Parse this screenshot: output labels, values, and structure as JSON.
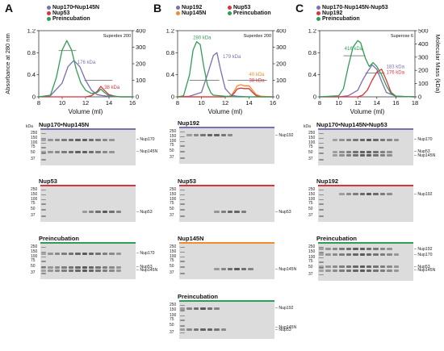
{
  "panels": [
    {
      "letter": "A",
      "legend": [
        {
          "label": "Nup170•Nup145N",
          "color": "#7b6fb0"
        },
        {
          "label": "Nup53",
          "color": "#d9333f"
        },
        {
          "label": "Preincubation",
          "color": "#2f9e55"
        }
      ],
      "column": "Superdex 200",
      "kda_labels": [
        "176 kDa",
        "38 kDa"
      ],
      "gels": [
        {
          "title": "Nup170•Nup145N",
          "line_color": "#7b6fb0",
          "mw": [
            "250",
            "150",
            "100",
            "75",
            "50",
            "37"
          ],
          "lanes": [
            "Nup170",
            "Nup145N"
          ]
        },
        {
          "title": "Nup53",
          "line_color": "#d9333f",
          "mw": [
            "250",
            "150",
            "100",
            "75",
            "50",
            "37"
          ],
          "lanes": [
            "Nup53"
          ]
        },
        {
          "title": "Preincubation",
          "line_color": "#2f9e55",
          "mw": [
            "250",
            "150",
            "100",
            "75",
            "50",
            "37"
          ],
          "lanes": [
            "Nup170",
            "Nup53",
            "Nup145N"
          ]
        }
      ]
    },
    {
      "letter": "B",
      "legend": [
        {
          "label": "Nup192",
          "color": "#7b6fb0"
        },
        {
          "label": "Nup145N",
          "color": "#f28c28"
        },
        {
          "label": "Nup53",
          "color": "#d9333f"
        },
        {
          "label": "Preincubation",
          "color": "#2f9e55"
        }
      ],
      "column": "Superdex 200",
      "kda_labels": [
        "280 kDa",
        "179 kDa",
        "40 kDa",
        "38 kDa"
      ],
      "gels": [
        {
          "title": "Nup192",
          "line_color": "#7b6fb0",
          "mw": [
            "250",
            "150",
            "100",
            "75",
            "50",
            "37"
          ],
          "lanes": [
            "Nup192"
          ]
        },
        {
          "title": "Nup53",
          "line_color": "#d9333f",
          "mw": [
            "250",
            "150",
            "100",
            "75",
            "50",
            "37"
          ],
          "lanes": [
            "Nup53"
          ]
        },
        {
          "title": "Nup145N",
          "line_color": "#f28c28",
          "mw": [
            "250",
            "150",
            "100",
            "75",
            "50",
            "37"
          ],
          "lanes": [
            "Nup145N"
          ]
        },
        {
          "title": "Preincubation",
          "line_color": "#2f9e55",
          "mw": [
            "250",
            "150",
            "100",
            "75",
            "50",
            "37"
          ],
          "lanes": [
            "Nup192",
            "Nup53",
            "Nup145N"
          ]
        }
      ]
    },
    {
      "letter": "C",
      "legend": [
        {
          "label": "Nup170-Nup145N-Nup53",
          "color": "#7b6fb0"
        },
        {
          "label": "Nup192",
          "color": "#d9333f"
        },
        {
          "label": "Preincubation",
          "color": "#2f9e55"
        }
      ],
      "column": "Superose 6",
      "kda_labels": [
        "416 kDa",
        "183 kDa",
        "176 kDa"
      ],
      "gels": [
        {
          "title": "Nup170•Nup145N•Nup53",
          "line_color": "#7b6fb0",
          "mw": [
            "250",
            "150",
            "100",
            "75",
            "50",
            "37"
          ],
          "lanes": [
            "Nup170",
            "Nup53",
            "Nup145N"
          ]
        },
        {
          "title": "Nup192",
          "line_color": "#d9333f",
          "mw": [
            "250",
            "150",
            "100",
            "75",
            "50",
            "37"
          ],
          "lanes": [
            "Nup192"
          ]
        },
        {
          "title": "Preincubation",
          "line_color": "#2f9e55",
          "mw": [
            "250",
            "150",
            "100",
            "75",
            "50",
            "37"
          ],
          "lanes": [
            "Nup192",
            "Nup170",
            "Nup53",
            "Nup145N"
          ]
        }
      ]
    }
  ],
  "axes": {
    "ylabel_left": "Absorbance at 280 nm",
    "ylabel_right": "Molecular Mass (kDa)",
    "xlabel": "Volume (ml)",
    "kda_unit": "kDa"
  },
  "chart_data": [
    {
      "type": "line",
      "xlabel": "Volume (ml)",
      "ylabel": "Absorbance at 280 nm",
      "y2label": "Molecular Mass (kDa)",
      "xlim": [
        8,
        16
      ],
      "xticks": [
        "8",
        "10",
        "12",
        "14",
        "16"
      ],
      "ylim": [
        0,
        1.2
      ],
      "yticks": [
        "0",
        "0.4",
        "0.8",
        "1.2"
      ],
      "y2lim": [
        0,
        400
      ],
      "y2ticks": [
        "0",
        "100",
        "200",
        "300",
        "400"
      ],
      "series": [
        {
          "name": "Nup170•Nup145N",
          "color": "#7b6fb0",
          "x": [
            8,
            9,
            10,
            10.5,
            11,
            11.5,
            12,
            12.5,
            13,
            13.5,
            14,
            15,
            16
          ],
          "y": [
            0,
            0.02,
            0.25,
            0.55,
            0.66,
            0.55,
            0.3,
            0.12,
            0.04,
            0.02,
            0.01,
            0,
            0
          ]
        },
        {
          "name": "Nup53",
          "color": "#d9333f",
          "x": [
            8,
            10,
            12,
            12.5,
            13,
            13.3,
            13.6,
            14,
            14.5,
            15,
            16
          ],
          "y": [
            0,
            0,
            0,
            0.02,
            0.1,
            0.19,
            0.12,
            0.04,
            0.01,
            0,
            0
          ]
        },
        {
          "name": "Preincubation",
          "color": "#2f9e55",
          "x": [
            8,
            9,
            9.5,
            10,
            10.4,
            10.8,
            11.2,
            11.6,
            12,
            12.5,
            13,
            13.3,
            13.6,
            14,
            15,
            16
          ],
          "y": [
            0,
            0.03,
            0.35,
            0.85,
            1.02,
            0.85,
            0.5,
            0.25,
            0.12,
            0.06,
            0.08,
            0.14,
            0.08,
            0.02,
            0,
            0
          ]
        }
      ]
    },
    {
      "type": "line",
      "xlabel": "Volume (ml)",
      "ylabel": "Absorbance at 280 nm",
      "y2label": "Molecular Mass (kDa)",
      "xlim": [
        8,
        16
      ],
      "xticks": [
        "8",
        "10",
        "12",
        "14",
        "16"
      ],
      "ylim": [
        0,
        1.2
      ],
      "yticks": [
        "0",
        "0.4",
        "0.8",
        "1.2"
      ],
      "y2lim": [
        0,
        400
      ],
      "y2ticks": [
        "0",
        "100",
        "200",
        "300",
        "400"
      ],
      "series": [
        {
          "name": "Nup192",
          "color": "#7b6fb0",
          "x": [
            8,
            9,
            10,
            10.5,
            11,
            11.3,
            11.6,
            12,
            12.5,
            13,
            14,
            16
          ],
          "y": [
            0,
            0.01,
            0.08,
            0.4,
            0.75,
            0.8,
            0.5,
            0.15,
            0.03,
            0.01,
            0,
            0
          ]
        },
        {
          "name": "Nup145N",
          "color": "#f28c28",
          "x": [
            8,
            12,
            12.5,
            12.8,
            13,
            13.3,
            13.6,
            14,
            14.3,
            14.6,
            15,
            16
          ],
          "y": [
            0,
            0,
            0.02,
            0.12,
            0.2,
            0.22,
            0.2,
            0.2,
            0.12,
            0.04,
            0.01,
            0
          ]
        },
        {
          "name": "Nup53",
          "color": "#d9333f",
          "x": [
            8,
            12,
            12.5,
            12.8,
            13,
            13.3,
            13.6,
            14,
            14.3,
            14.6,
            15,
            16
          ],
          "y": [
            0,
            0,
            0.01,
            0.08,
            0.14,
            0.16,
            0.15,
            0.15,
            0.08,
            0.02,
            0,
            0
          ]
        },
        {
          "name": "Preincubation",
          "color": "#2f9e55",
          "x": [
            8,
            8.5,
            9,
            9.3,
            9.6,
            9.9,
            10.2,
            10.5,
            10.8,
            11,
            11.5,
            12,
            13,
            16
          ],
          "y": [
            0,
            0.02,
            0.4,
            0.85,
            1.0,
            0.95,
            0.55,
            0.22,
            0.07,
            0.03,
            0.02,
            0.01,
            0,
            0
          ]
        }
      ]
    },
    {
      "type": "line",
      "xlabel": "Volume (ml)",
      "ylabel": "Absorbance at 280 nm",
      "y2label": "Molecular Mass (kDa)",
      "xlim": [
        8,
        18
      ],
      "xticks": [
        "8",
        "10",
        "12",
        "14",
        "16",
        "18"
      ],
      "ylim": [
        0,
        1.2
      ],
      "yticks": [
        "0",
        "0.4",
        "0.8",
        "1.2"
      ],
      "y2lim": [
        0,
        500
      ],
      "y2ticks": [
        "0",
        "100",
        "200",
        "300",
        "400",
        "500"
      ],
      "series": [
        {
          "name": "Nup170-Nup145N-Nup53",
          "color": "#7b6fb0",
          "x": [
            8,
            10,
            11,
            12,
            12.5,
            13,
            13.5,
            14,
            14.5,
            15,
            16,
            18
          ],
          "y": [
            0,
            0,
            0.02,
            0.12,
            0.3,
            0.45,
            0.58,
            0.5,
            0.28,
            0.08,
            0.01,
            0
          ]
        },
        {
          "name": "Nup192",
          "color": "#d9333f",
          "x": [
            8,
            12,
            12.5,
            13,
            13.5,
            14,
            14.5,
            15,
            15.5,
            16,
            18
          ],
          "y": [
            0,
            0,
            0.03,
            0.12,
            0.3,
            0.45,
            0.5,
            0.3,
            0.08,
            0.01,
            0
          ]
        },
        {
          "name": "Preincubation",
          "color": "#2f9e55",
          "x": [
            8,
            10,
            10.5,
            11,
            11.5,
            12,
            12.3,
            12.8,
            13.2,
            13.6,
            14,
            14.5,
            15,
            15.5,
            16,
            18
          ],
          "y": [
            0,
            0.02,
            0.15,
            0.55,
            0.9,
            1.02,
            0.98,
            0.7,
            0.55,
            0.62,
            0.55,
            0.4,
            0.2,
            0.06,
            0.01,
            0
          ]
        }
      ]
    }
  ]
}
